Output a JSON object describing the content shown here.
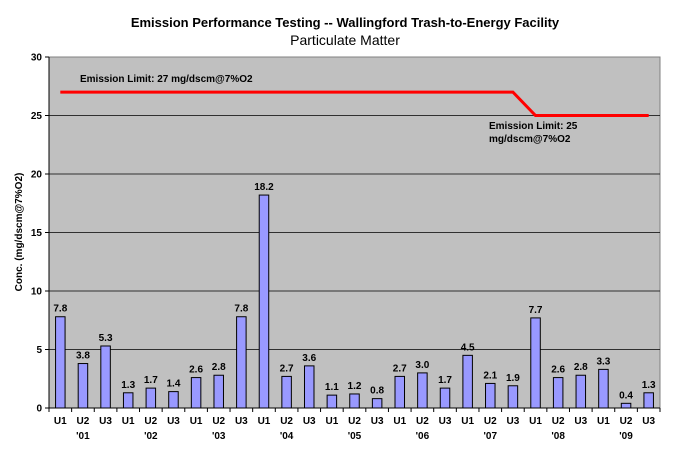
{
  "chart_data": {
    "type": "bar",
    "title": "Emission Performance Testing -- Wallingford Trash-to-Energy Facility",
    "subtitle": "Particulate Matter",
    "ylabel": "Conc. (mg/dscm@7%O2)",
    "xlabel": "",
    "ylim": [
      0,
      30
    ],
    "yticks": [
      0,
      5,
      10,
      15,
      20,
      25,
      30
    ],
    "grid": true,
    "colors": {
      "bar": "#9999ff",
      "bar_edge": "#000000",
      "limit": "#ff0000",
      "plot_bg": "#c0c0c0"
    },
    "categories": [
      "U1",
      "U2",
      "U3",
      "U1",
      "U2",
      "U3",
      "U1",
      "U2",
      "U3",
      "U1",
      "U2",
      "U3",
      "U1",
      "U2",
      "U3",
      "U1",
      "U2",
      "U3",
      "U1",
      "U2",
      "U3",
      "U1",
      "U2",
      "U3",
      "U1",
      "U2",
      "U3"
    ],
    "year_labels": [
      "'01",
      "'02",
      "'03",
      "'04",
      "'05",
      "'06",
      "'07",
      "'08",
      "'09"
    ],
    "values": [
      7.8,
      3.8,
      5.3,
      1.3,
      1.7,
      1.4,
      2.6,
      2.8,
      7.8,
      18.2,
      2.7,
      3.6,
      1.1,
      1.2,
      0.8,
      2.7,
      3.0,
      1.7,
      4.5,
      2.1,
      1.9,
      7.7,
      2.6,
      2.8,
      3.3,
      0.4,
      1.3
    ],
    "value_labels": [
      "7.8",
      "3.8",
      "5.3",
      "1.3",
      "1.7",
      "1.4",
      "2.6",
      "2.8",
      "7.8",
      "18.2",
      "2.7",
      "3.6",
      "1.1",
      "1.2",
      "0.8",
      "2.7",
      "3.0",
      "1.7",
      "4.5",
      "2.1",
      "1.9",
      "7.7",
      "2.6",
      "2.8",
      "3.3",
      "0.4",
      "1.3"
    ],
    "limit_line": {
      "values": [
        27,
        27,
        27,
        27,
        27,
        27,
        27,
        27,
        27,
        27,
        27,
        27,
        27,
        27,
        27,
        27,
        27,
        27,
        27,
        27,
        27,
        25,
        25,
        25,
        25,
        25,
        25
      ]
    },
    "annotations": {
      "limit_1": "Emission Limit: 27 mg/dscm@7%O2",
      "limit_2_line1": "Emission Limit: 25",
      "limit_2_line2": "mg/dscm@7%O2"
    }
  }
}
